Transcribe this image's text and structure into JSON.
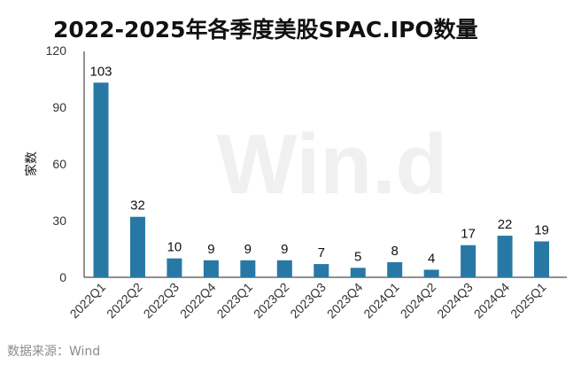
{
  "chart_data": {
    "type": "bar",
    "title": "2022-2025年各季度美股SPAC.IPO数量",
    "ylabel": "家数",
    "xlabel": "",
    "categories": [
      "2022Q1",
      "2022Q2",
      "2022Q3",
      "2022Q4",
      "2023Q1",
      "2023Q2",
      "2023Q3",
      "2023Q4",
      "2024Q1",
      "2024Q2",
      "2024Q3",
      "2024Q4",
      "2025Q1"
    ],
    "values": [
      103,
      32,
      10,
      9,
      9,
      9,
      7,
      5,
      8,
      4,
      17,
      22,
      19
    ],
    "ylim": [
      0,
      120
    ],
    "yticks": [
      0,
      30,
      60,
      90,
      120
    ],
    "bar_color": "#2878a6",
    "grid": false,
    "legend": "none"
  },
  "watermark": "Win.d",
  "source": "数据来源：Wind"
}
